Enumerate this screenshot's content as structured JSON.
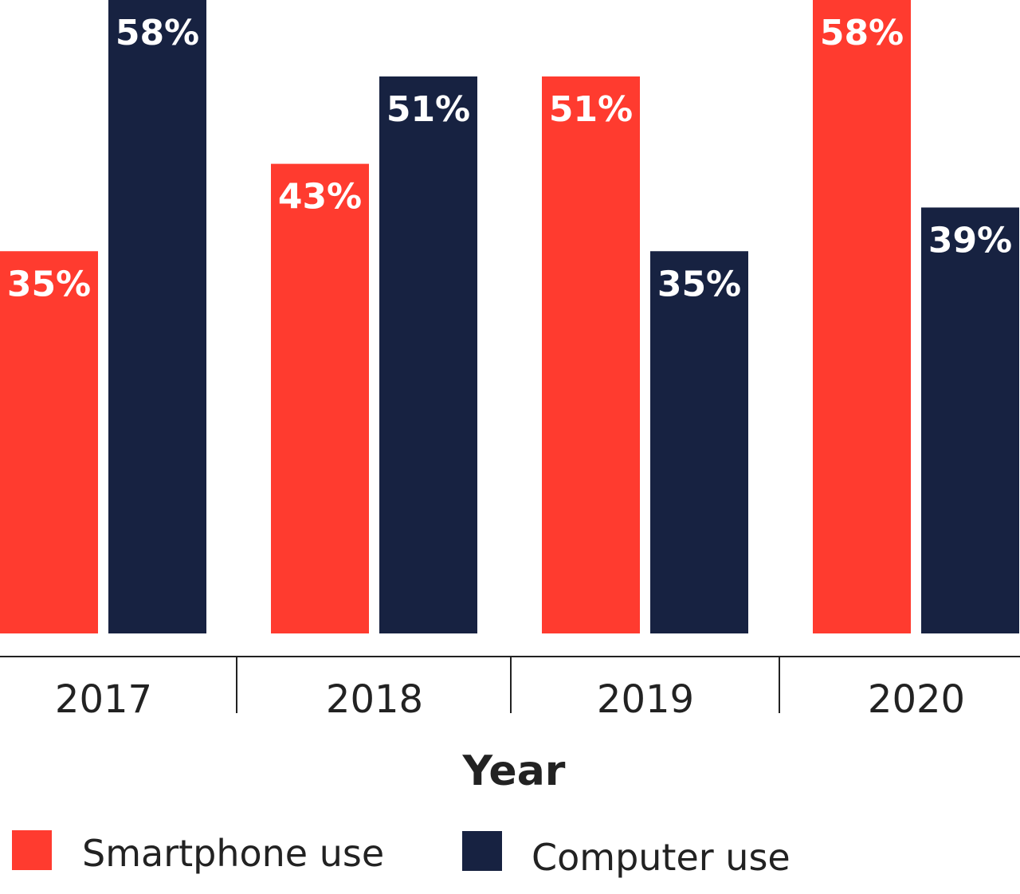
{
  "chart_data": {
    "type": "bar",
    "title": "",
    "xlabel": "Year",
    "ylabel": "",
    "ylim": [
      0,
      58
    ],
    "grid": false,
    "categories": [
      "2017",
      "2018",
      "2019",
      "2020"
    ],
    "series": [
      {
        "name": "Smartphone use",
        "color": "#FF3B2F",
        "values": [
          35,
          43,
          51,
          58
        ],
        "labels": [
          "35%",
          "43%",
          "51%",
          "58%"
        ]
      },
      {
        "name": "Computer use",
        "color": "#172241",
        "values": [
          58,
          51,
          35,
          39
        ],
        "labels": [
          "58%",
          "51%",
          "35%",
          "39%"
        ]
      }
    ],
    "legend_position": "bottom-left"
  }
}
